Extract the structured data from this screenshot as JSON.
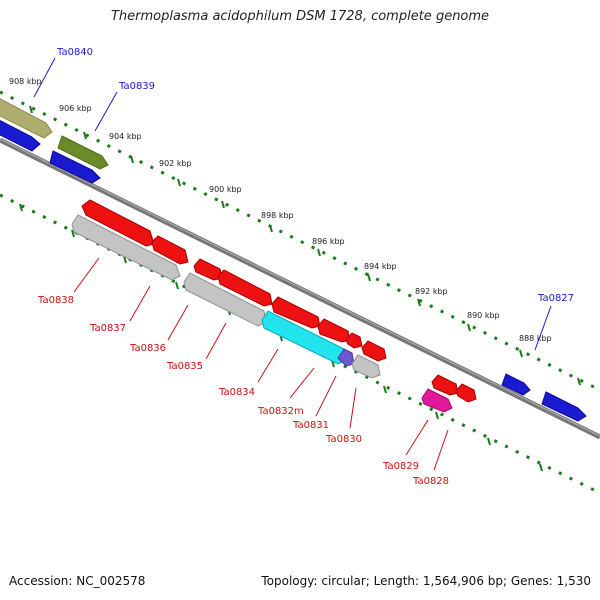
{
  "title": "Thermoplasma acidophilum DSM 1728, complete genome",
  "footer": {
    "accession": "Accession: NC_002578",
    "summary": "Topology: circular; Length: 1,564,906 bp; Genes: 1,530"
  },
  "scale_labels": [
    "908 kbp",
    "906 kbp",
    "904 kbp",
    "902 kbp",
    "900 kbp",
    "898 kbp",
    "896 kbp",
    "894 kbp",
    "892 kbp",
    "890 kbp",
    "888 kbp"
  ],
  "genes_forward": [
    "Ta0840",
    "Ta0839",
    "Ta0827"
  ],
  "genes_reverse": [
    "Ta0838",
    "Ta0837",
    "Ta0836",
    "Ta0835",
    "Ta0834",
    "Ta0832m",
    "Ta0831",
    "Ta0830",
    "Ta0829",
    "Ta0828"
  ],
  "colors": {
    "forward_label": "#1a1ad0",
    "reverse_label": "#cc1111",
    "tick": "#1a7a1a",
    "backbone": "#777777"
  }
}
